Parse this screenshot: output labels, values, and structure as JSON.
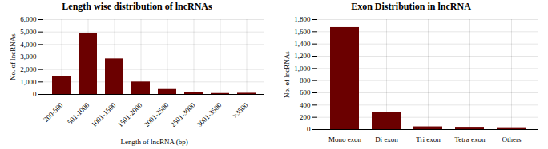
{
  "chart_data": [
    {
      "type": "bar",
      "title": "Length wise distribution of lncRNAs",
      "xlabel": "Length of lncRNA (bp)",
      "ylabel": "No. of lncRNAs",
      "categories": [
        "200-500",
        "501-1000",
        "1001-1500",
        "1501-2000",
        "2001-2500",
        "2501-3000",
        "3001-3500",
        ">3500"
      ],
      "values": [
        1450,
        4900,
        2850,
        1000,
        400,
        150,
        80,
        100
      ],
      "color": "#6B0000",
      "ylim": [
        0,
        6000
      ],
      "yticks": [
        0,
        1000,
        2000,
        3000,
        4000,
        5000,
        6000
      ],
      "grid": true
    },
    {
      "type": "bar",
      "title": "Exon Distribution in lncRNA",
      "ylabel": "No. of lncRNAs",
      "categories": [
        "Mono exon",
        "Di exon",
        "Tri exon",
        "Tetra exon",
        "Others"
      ],
      "values": [
        1670,
        280,
        45,
        25,
        18
      ],
      "color": "#6B0000",
      "ylim": [
        0,
        1800
      ],
      "yticks": [
        0,
        200,
        400,
        600,
        800,
        1000,
        1200,
        1400,
        1600,
        1800
      ],
      "grid": true
    }
  ]
}
